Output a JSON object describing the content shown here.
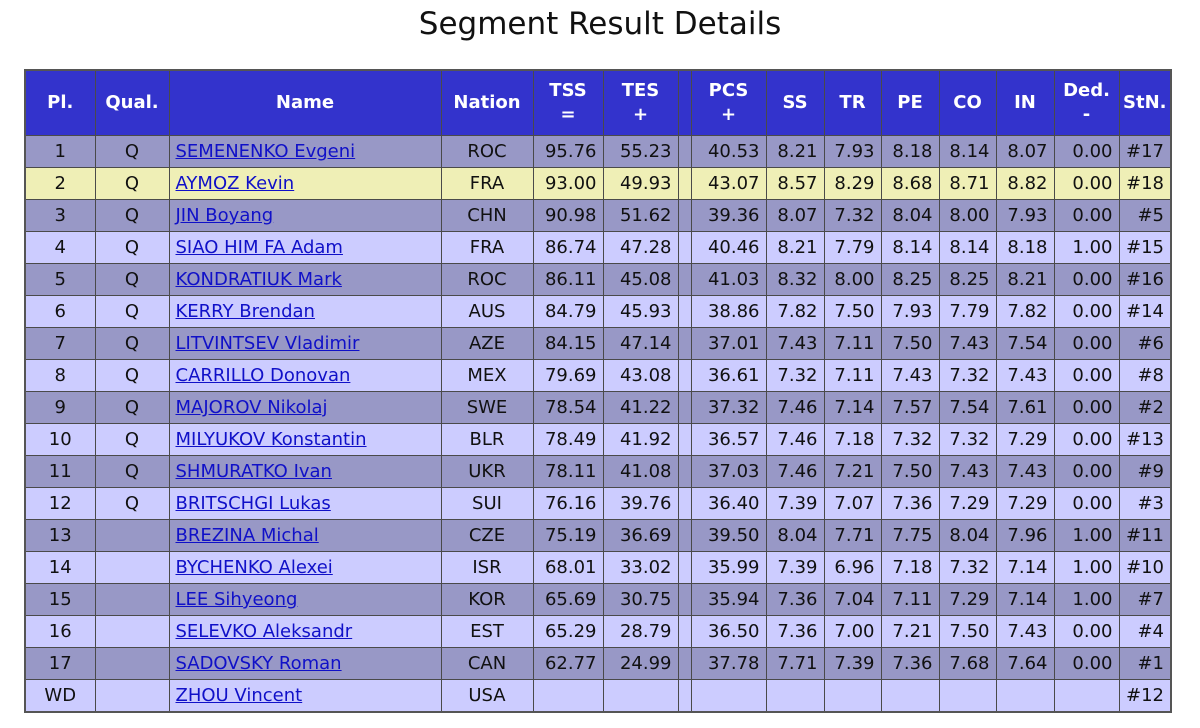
{
  "title": "Segment Result Details",
  "headers": {
    "pl": "Pl.",
    "qual": "Qual.",
    "name": "Name",
    "nation": "Nation",
    "tss_1": "TSS",
    "tss_2": "=",
    "tes_1": "TES",
    "tes_2": "+",
    "pcs_1": "PCS",
    "pcs_2": "+",
    "ss": "SS",
    "tr": "TR",
    "pe": "PE",
    "co": "CO",
    "in": "IN",
    "ded_1": "Ded.",
    "ded_2": "-",
    "stn": "StN."
  },
  "colors": {
    "header_bg": "#3333cc",
    "row_dark": "#9898c6",
    "row_light": "#ccccff",
    "row_highlight": "#efefb6",
    "link": "#1010c8"
  },
  "highlight_row": 1,
  "rows": [
    {
      "pl": "1",
      "qual": "Q",
      "name": "SEMENENKO Evgeni",
      "nation": "ROC",
      "tss": "95.76",
      "tes": "55.23",
      "pcs": "40.53",
      "ss": "8.21",
      "tr": "7.93",
      "pe": "8.18",
      "co": "8.14",
      "in": "8.07",
      "ded": "0.00",
      "stn": "#17"
    },
    {
      "pl": "2",
      "qual": "Q",
      "name": "AYMOZ Kevin",
      "nation": "FRA",
      "tss": "93.00",
      "tes": "49.93",
      "pcs": "43.07",
      "ss": "8.57",
      "tr": "8.29",
      "pe": "8.68",
      "co": "8.71",
      "in": "8.82",
      "ded": "0.00",
      "stn": "#18"
    },
    {
      "pl": "3",
      "qual": "Q",
      "name": "JIN Boyang",
      "nation": "CHN",
      "tss": "90.98",
      "tes": "51.62",
      "pcs": "39.36",
      "ss": "8.07",
      "tr": "7.32",
      "pe": "8.04",
      "co": "8.00",
      "in": "7.93",
      "ded": "0.00",
      "stn": "#5"
    },
    {
      "pl": "4",
      "qual": "Q",
      "name": "SIAO HIM FA Adam",
      "nation": "FRA",
      "tss": "86.74",
      "tes": "47.28",
      "pcs": "40.46",
      "ss": "8.21",
      "tr": "7.79",
      "pe": "8.14",
      "co": "8.14",
      "in": "8.18",
      "ded": "1.00",
      "stn": "#15"
    },
    {
      "pl": "5",
      "qual": "Q",
      "name": "KONDRATIUK Mark",
      "nation": "ROC",
      "tss": "86.11",
      "tes": "45.08",
      "pcs": "41.03",
      "ss": "8.32",
      "tr": "8.00",
      "pe": "8.25",
      "co": "8.25",
      "in": "8.21",
      "ded": "0.00",
      "stn": "#16"
    },
    {
      "pl": "6",
      "qual": "Q",
      "name": "KERRY Brendan",
      "nation": "AUS",
      "tss": "84.79",
      "tes": "45.93",
      "pcs": "38.86",
      "ss": "7.82",
      "tr": "7.50",
      "pe": "7.93",
      "co": "7.79",
      "in": "7.82",
      "ded": "0.00",
      "stn": "#14"
    },
    {
      "pl": "7",
      "qual": "Q",
      "name": "LITVINTSEV Vladimir",
      "nation": "AZE",
      "tss": "84.15",
      "tes": "47.14",
      "pcs": "37.01",
      "ss": "7.43",
      "tr": "7.11",
      "pe": "7.50",
      "co": "7.43",
      "in": "7.54",
      "ded": "0.00",
      "stn": "#6"
    },
    {
      "pl": "8",
      "qual": "Q",
      "name": "CARRILLO Donovan",
      "nation": "MEX",
      "tss": "79.69",
      "tes": "43.08",
      "pcs": "36.61",
      "ss": "7.32",
      "tr": "7.11",
      "pe": "7.43",
      "co": "7.32",
      "in": "7.43",
      "ded": "0.00",
      "stn": "#8"
    },
    {
      "pl": "9",
      "qual": "Q",
      "name": "MAJOROV Nikolaj",
      "nation": "SWE",
      "tss": "78.54",
      "tes": "41.22",
      "pcs": "37.32",
      "ss": "7.46",
      "tr": "7.14",
      "pe": "7.57",
      "co": "7.54",
      "in": "7.61",
      "ded": "0.00",
      "stn": "#2"
    },
    {
      "pl": "10",
      "qual": "Q",
      "name": "MILYUKOV Konstantin",
      "nation": "BLR",
      "tss": "78.49",
      "tes": "41.92",
      "pcs": "36.57",
      "ss": "7.46",
      "tr": "7.18",
      "pe": "7.32",
      "co": "7.32",
      "in": "7.29",
      "ded": "0.00",
      "stn": "#13"
    },
    {
      "pl": "11",
      "qual": "Q",
      "name": "SHMURATKO Ivan",
      "nation": "UKR",
      "tss": "78.11",
      "tes": "41.08",
      "pcs": "37.03",
      "ss": "7.46",
      "tr": "7.21",
      "pe": "7.50",
      "co": "7.43",
      "in": "7.43",
      "ded": "0.00",
      "stn": "#9"
    },
    {
      "pl": "12",
      "qual": "Q",
      "name": "BRITSCHGI Lukas",
      "nation": "SUI",
      "tss": "76.16",
      "tes": "39.76",
      "pcs": "36.40",
      "ss": "7.39",
      "tr": "7.07",
      "pe": "7.36",
      "co": "7.29",
      "in": "7.29",
      "ded": "0.00",
      "stn": "#3"
    },
    {
      "pl": "13",
      "qual": "",
      "name": "BREZINA Michal",
      "nation": "CZE",
      "tss": "75.19",
      "tes": "36.69",
      "pcs": "39.50",
      "ss": "8.04",
      "tr": "7.71",
      "pe": "7.75",
      "co": "8.04",
      "in": "7.96",
      "ded": "1.00",
      "stn": "#11"
    },
    {
      "pl": "14",
      "qual": "",
      "name": "BYCHENKO Alexei",
      "nation": "ISR",
      "tss": "68.01",
      "tes": "33.02",
      "pcs": "35.99",
      "ss": "7.39",
      "tr": "6.96",
      "pe": "7.18",
      "co": "7.32",
      "in": "7.14",
      "ded": "1.00",
      "stn": "#10"
    },
    {
      "pl": "15",
      "qual": "",
      "name": "LEE Sihyeong",
      "nation": "KOR",
      "tss": "65.69",
      "tes": "30.75",
      "pcs": "35.94",
      "ss": "7.36",
      "tr": "7.04",
      "pe": "7.11",
      "co": "7.29",
      "in": "7.14",
      "ded": "1.00",
      "stn": "#7"
    },
    {
      "pl": "16",
      "qual": "",
      "name": "SELEVKO Aleksandr",
      "nation": "EST",
      "tss": "65.29",
      "tes": "28.79",
      "pcs": "36.50",
      "ss": "7.36",
      "tr": "7.00",
      "pe": "7.21",
      "co": "7.50",
      "in": "7.43",
      "ded": "0.00",
      "stn": "#4"
    },
    {
      "pl": "17",
      "qual": "",
      "name": "SADOVSKY Roman",
      "nation": "CAN",
      "tss": "62.77",
      "tes": "24.99",
      "pcs": "37.78",
      "ss": "7.71",
      "tr": "7.39",
      "pe": "7.36",
      "co": "7.68",
      "in": "7.64",
      "ded": "0.00",
      "stn": "#1"
    },
    {
      "pl": "WD",
      "qual": "",
      "name": "ZHOU Vincent",
      "nation": "USA",
      "tss": "",
      "tes": "",
      "pcs": "",
      "ss": "",
      "tr": "",
      "pe": "",
      "co": "",
      "in": "",
      "ded": "",
      "stn": "#12"
    }
  ]
}
